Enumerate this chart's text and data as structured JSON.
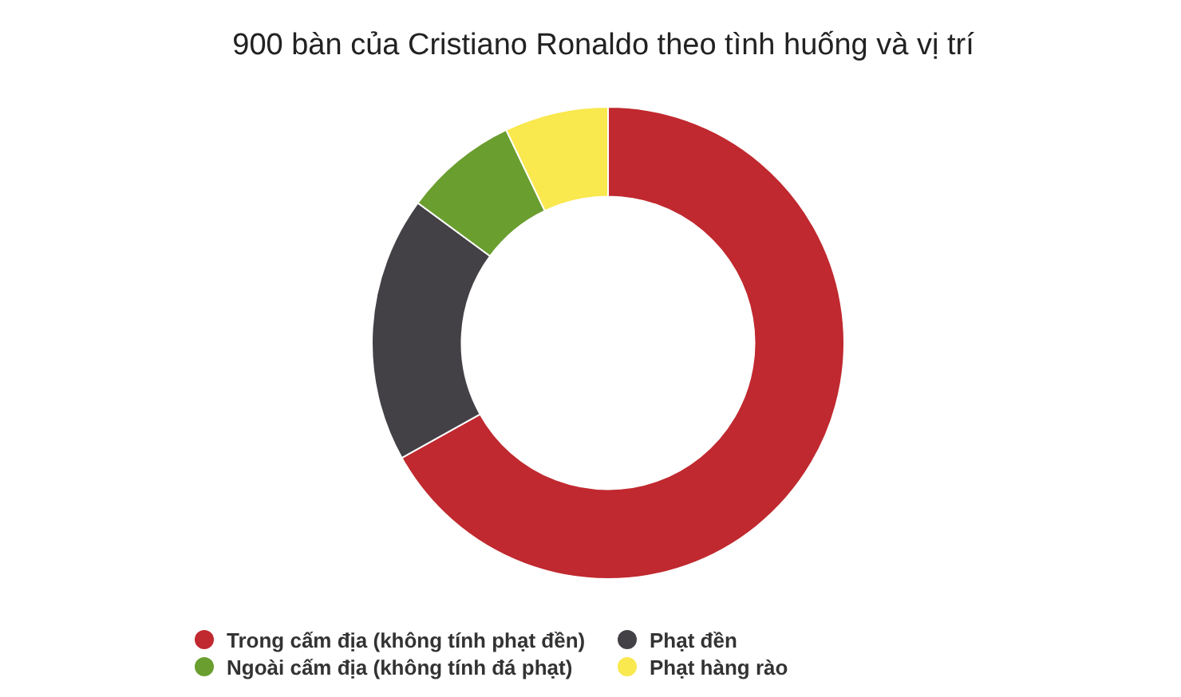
{
  "chart_data": {
    "type": "donut",
    "title": "900 bàn của Cristiano Ronaldo theo tình huống và vị trí",
    "categories": [
      "Trong cấm địa (không tính phạt đền)",
      "Phạt đền",
      "Ngoài cấm địa (không tính đá phạt)",
      "Phạt hàng rào"
    ],
    "values": [
      66.9,
      18.2,
      7.8,
      7.1
    ],
    "colors": [
      "#c0292f",
      "#434146",
      "#6a9e2f",
      "#f9e84e"
    ],
    "legend": "bottom"
  }
}
